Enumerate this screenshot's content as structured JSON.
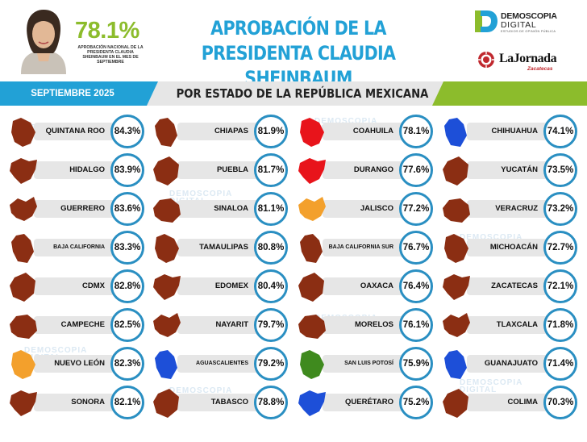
{
  "header": {
    "approval_value": "78.1%",
    "approval_caption": "APROBACIÓN NACIONAL DE LA PRESIDENTA CLAUDIA SHEINBAUM EN EL MES DE SEPTIEMBRE",
    "title_line1": "APROBACIÓN DE LA",
    "title_line2": "PRESIDENTA CLAUDIA SHEINBAUM",
    "logo_dd_line1": "DEMOSCOPIA",
    "logo_dd_line2": "DIGITAL",
    "logo_dd_sub": "ESTUDIOS DE OPINIÓN PÚBLICA",
    "logo_lj_name": "LaJornada",
    "logo_lj_sub": "Zacatecas"
  },
  "band": {
    "date": "SEPTIEMBRE 2025",
    "subtitle": "POR ESTADO DE LA REPÚBLICA MEXICANA"
  },
  "watermark": {
    "line1": "DEMOSCOPIA",
    "line2": "DIGITAL"
  },
  "colors": {
    "accent_blue": "#22a1d6",
    "accent_green": "#8cbc2c",
    "ring_blue": "#2a8fc2",
    "state_brown": "#8b2e13",
    "state_red": "#e8141b",
    "state_orange": "#f3a02c",
    "state_blue": "#1d4fd8",
    "state_green": "#3f8a1e"
  },
  "columns": [
    [
      {
        "name": "QUINTANA ROO",
        "value": "84.3%",
        "color": "#8b2e13"
      },
      {
        "name": "HIDALGO",
        "value": "83.9%",
        "color": "#8b2e13"
      },
      {
        "name": "GUERRERO",
        "value": "83.6%",
        "color": "#8b2e13"
      },
      {
        "name": "BAJA CALIFORNIA",
        "value": "83.3%",
        "color": "#8b2e13"
      },
      {
        "name": "CDMX",
        "value": "82.8%",
        "color": "#8b2e13"
      },
      {
        "name": "CAMPECHE",
        "value": "82.5%",
        "color": "#8b2e13"
      },
      {
        "name": "NUEVO LEÓN",
        "value": "82.3%",
        "color": "#f3a02c"
      },
      {
        "name": "SONORA",
        "value": "82.1%",
        "color": "#8b2e13"
      }
    ],
    [
      {
        "name": "CHIAPAS",
        "value": "81.9%",
        "color": "#8b2e13"
      },
      {
        "name": "PUEBLA",
        "value": "81.7%",
        "color": "#8b2e13"
      },
      {
        "name": "SINALOA",
        "value": "81.1%",
        "color": "#8b2e13"
      },
      {
        "name": "TAMAULIPAS",
        "value": "80.8%",
        "color": "#8b2e13"
      },
      {
        "name": "EDOMEX",
        "value": "80.4%",
        "color": "#8b2e13"
      },
      {
        "name": "NAYARIT",
        "value": "79.7%",
        "color": "#8b2e13"
      },
      {
        "name": "AGUASCALIENTES",
        "value": "79.2%",
        "color": "#1d4fd8"
      },
      {
        "name": "TABASCO",
        "value": "78.8%",
        "color": "#8b2e13"
      }
    ],
    [
      {
        "name": "COAHUILA",
        "value": "78.1%",
        "color": "#e8141b"
      },
      {
        "name": "DURANGO",
        "value": "77.6%",
        "color": "#e8141b"
      },
      {
        "name": "JALISCO",
        "value": "77.2%",
        "color": "#f3a02c"
      },
      {
        "name": "BAJA CALIFORNIA SUR",
        "value": "76.7%",
        "color": "#8b2e13"
      },
      {
        "name": "OAXACA",
        "value": "76.4%",
        "color": "#8b2e13"
      },
      {
        "name": "MORELOS",
        "value": "76.1%",
        "color": "#8b2e13"
      },
      {
        "name": "SAN LUIS POTOSÍ",
        "value": "75.9%",
        "color": "#3f8a1e"
      },
      {
        "name": "QUERÉTARO",
        "value": "75.2%",
        "color": "#1d4fd8"
      }
    ],
    [
      {
        "name": "CHIHUAHUA",
        "value": "74.1%",
        "color": "#1d4fd8"
      },
      {
        "name": "YUCATÁN",
        "value": "73.5%",
        "color": "#8b2e13"
      },
      {
        "name": "VERACRUZ",
        "value": "73.2%",
        "color": "#8b2e13"
      },
      {
        "name": "MICHOACÁN",
        "value": "72.7%",
        "color": "#8b2e13"
      },
      {
        "name": "ZACATECAS",
        "value": "72.1%",
        "color": "#8b2e13"
      },
      {
        "name": "TLAXCALA",
        "value": "71.8%",
        "color": "#8b2e13"
      },
      {
        "name": "GUANAJUATO",
        "value": "71.4%",
        "color": "#1d4fd8"
      },
      {
        "name": "COLIMA",
        "value": "70.3%",
        "color": "#8b2e13"
      }
    ]
  ]
}
